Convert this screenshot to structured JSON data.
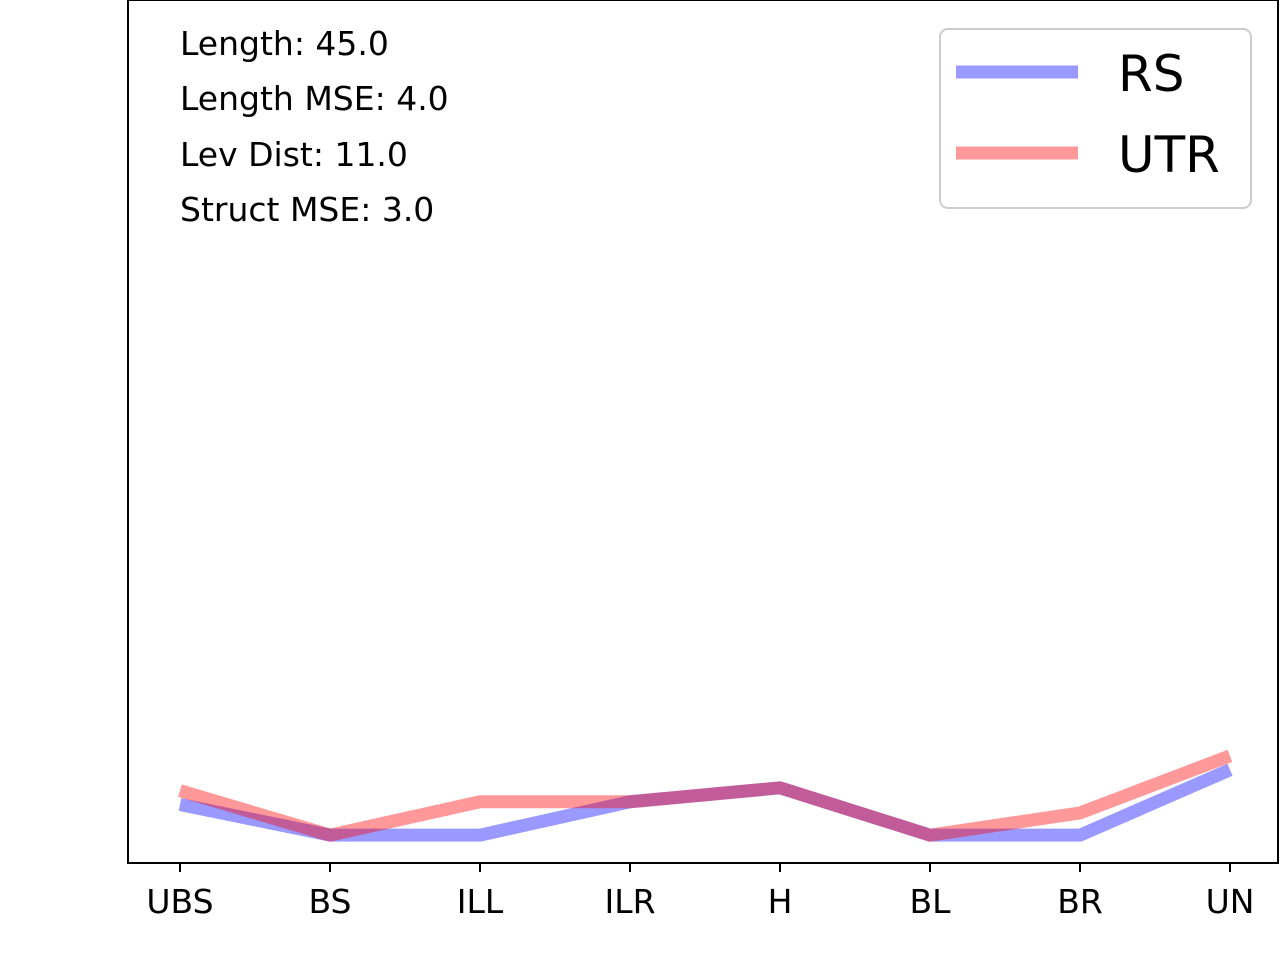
{
  "chart_data": {
    "type": "line",
    "categories": [
      "UBS",
      "BS",
      "ILL",
      "ILR",
      "H",
      "BL",
      "BR",
      "UN"
    ],
    "series": [
      {
        "name": "RS",
        "values": [
          2.2,
          0.0,
          0.0,
          2.4,
          3.4,
          0.0,
          0.0,
          4.7
        ],
        "color": "#0000ff",
        "alpha": 0.4
      },
      {
        "name": "UTR",
        "values": [
          3.2,
          0.0,
          2.4,
          2.4,
          3.4,
          0.0,
          1.6,
          5.7
        ],
        "color": "#ff0000",
        "alpha": 0.4
      }
    ],
    "annotations": [
      "Length: 45.0",
      "Length MSE: 4.0",
      "Lev Dist: 11.0",
      "Struct MSE: 3.0"
    ],
    "title": "",
    "xlabel": "",
    "ylabel": "",
    "ylim": [
      -2,
      60
    ],
    "y_ticks_visible": false,
    "grid": false,
    "legend_position": "upper right"
  }
}
